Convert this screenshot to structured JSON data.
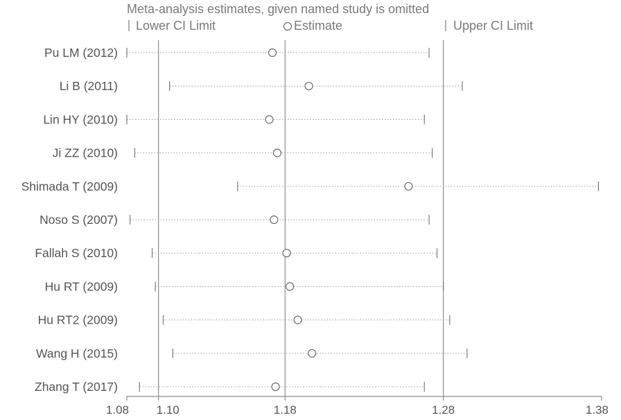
{
  "chart_data": {
    "type": "scatter",
    "title": "Meta-analysis estimates, given named study is omitted",
    "legend": {
      "lower": "Lower CI Limit",
      "estimate": "Estimate",
      "upper": "Upper CI Limit"
    },
    "xlim": [
      1.08,
      1.38
    ],
    "x_ticks": [
      {
        "value": 1.08,
        "label": "1.08"
      },
      {
        "value": 1.1,
        "label": "1.10"
      },
      {
        "value": 1.18,
        "label": "1.18"
      },
      {
        "value": 1.28,
        "label": "1.28"
      },
      {
        "value": 1.38,
        "label": "1.38"
      }
    ],
    "reference_lines": [
      1.1,
      1.18,
      1.28
    ],
    "studies": [
      {
        "label": "Pu LM  (2012)",
        "lower": 1.08,
        "estimate": 1.172,
        "upper": 1.271
      },
      {
        "label": "Li B  (2011)",
        "lower": 1.107,
        "estimate": 1.195,
        "upper": 1.292
      },
      {
        "label": "Lin HY (2010)",
        "lower": 1.08,
        "estimate": 1.17,
        "upper": 1.268
      },
      {
        "label": "Ji ZZ (2010)",
        "lower": 1.085,
        "estimate": 1.175,
        "upper": 1.273
      },
      {
        "label": "Shimada  T (2009)",
        "lower": 1.15,
        "estimate": 1.258,
        "upper": 1.378
      },
      {
        "label": "Noso S  (2007)",
        "lower": 1.082,
        "estimate": 1.173,
        "upper": 1.271
      },
      {
        "label": "Fallah S (2010)",
        "lower": 1.096,
        "estimate": 1.181,
        "upper": 1.276
      },
      {
        "label": "Hu RT (2009)",
        "lower": 1.098,
        "estimate": 1.183,
        "upper": 1.28
      },
      {
        "label": "Hu RT2 (2009)",
        "lower": 1.103,
        "estimate": 1.188,
        "upper": 1.284
      },
      {
        "label": "Wang H (2015)",
        "lower": 1.109,
        "estimate": 1.197,
        "upper": 1.295
      },
      {
        "label": "Zhang T (2017)",
        "lower": 1.088,
        "estimate": 1.174,
        "upper": 1.268
      }
    ]
  }
}
